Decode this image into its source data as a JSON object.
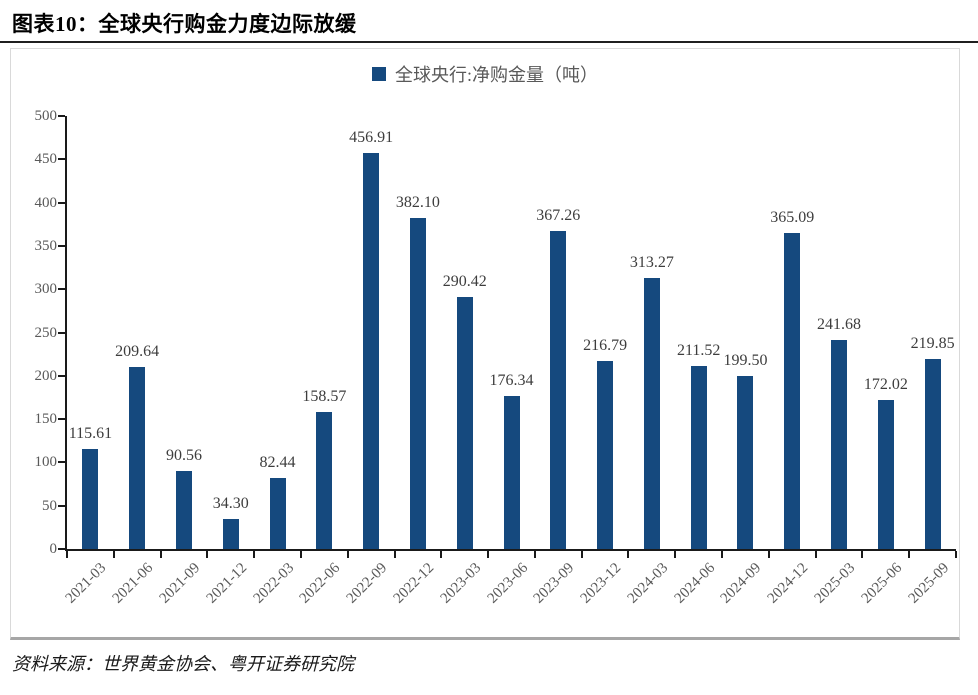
{
  "title": "图表10：全球央行购金力度边际放缓",
  "legend": "全球央行:净购金量（吨）",
  "source": "资料来源：世界黄金协会、粤开证券研究院",
  "colors": {
    "bar": "#15497E",
    "axis": "#1a1a1a",
    "tick_label": "#595959",
    "value_label": "#3d3d3d"
  },
  "chart_data": {
    "type": "bar",
    "title": "图表10：全球央行购金力度边际放缓",
    "series_name": "全球央行:净购金量（吨）",
    "categories": [
      "2021-03",
      "2021-06",
      "2021-09",
      "2021-12",
      "2022-03",
      "2022-06",
      "2022-09",
      "2022-12",
      "2023-03",
      "2023-06",
      "2023-09",
      "2023-12",
      "2024-03",
      "2024-06",
      "2024-09",
      "2024-12",
      "2025-03",
      "2025-06",
      "2025-09"
    ],
    "values": [
      115.61,
      209.64,
      90.56,
      34.3,
      82.44,
      158.57,
      456.91,
      382.1,
      290.42,
      176.34,
      367.26,
      216.79,
      313.27,
      211.52,
      199.5,
      365.09,
      241.68,
      172.02,
      219.85
    ],
    "xlabel": "",
    "ylabel": "",
    "ylim": [
      0,
      500
    ],
    "ytick_step": 50,
    "grid": false,
    "legend_position": "top-center",
    "data_labels": true,
    "value_label_decimals": 2
  }
}
